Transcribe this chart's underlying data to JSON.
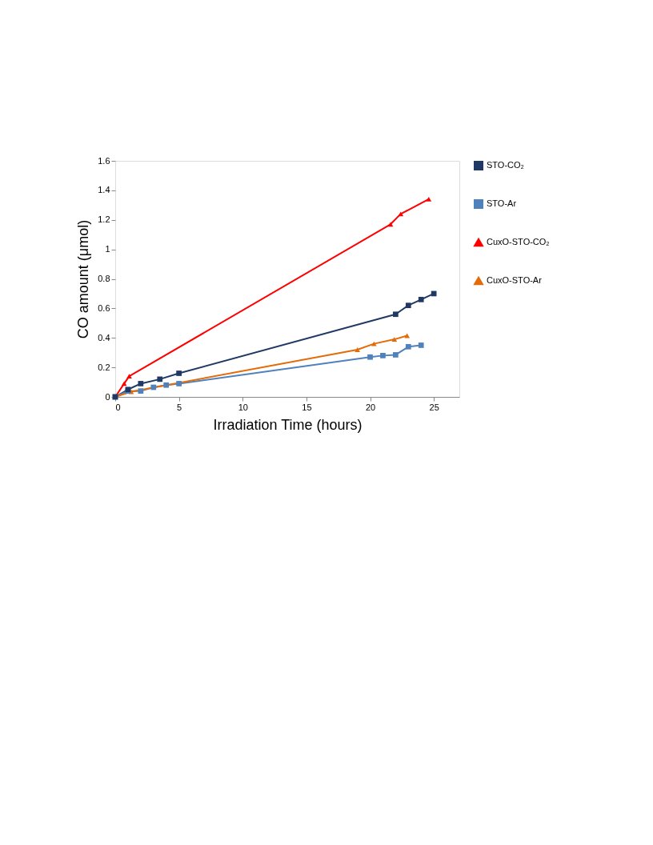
{
  "chart_data": {
    "type": "line",
    "xlabel": "Irradiation Time (hours)",
    "ylabel": "CO amount (μmol)",
    "xlim": [
      0,
      27
    ],
    "xticks": [
      0,
      5,
      10,
      15,
      20,
      25
    ],
    "ylim": [
      0,
      1.6
    ],
    "yticks": [
      0,
      0.2,
      0.4,
      0.6,
      0.8,
      1,
      1.2,
      1.4,
      1.6
    ],
    "grid": false,
    "legend": "right",
    "series": [
      {
        "name": "STO-CO₂",
        "color": "#1f3864",
        "marker": "square",
        "x": [
          0,
          1,
          2,
          3.5,
          5,
          22,
          23,
          24,
          25
        ],
        "values": [
          0,
          0.05,
          0.09,
          0.12,
          0.16,
          0.56,
          0.62,
          0.66,
          0.7
        ]
      },
      {
        "name": "STO-Ar",
        "color": "#4f81bd",
        "marker": "square",
        "x": [
          0,
          1,
          2,
          3,
          4,
          5,
          20,
          21,
          22,
          23,
          24
        ],
        "values": [
          0,
          0.04,
          0.04,
          0.065,
          0.08,
          0.09,
          0.27,
          0.28,
          0.285,
          0.34,
          0.35
        ]
      },
      {
        "name": "CuxO-STO-CO₂",
        "color": "#ff0000",
        "marker": "triangle",
        "x": [
          0,
          0.7,
          1.1,
          21.6,
          22.4,
          24.6
        ],
        "values": [
          0,
          0.09,
          0.14,
          1.17,
          1.24,
          1.34
        ]
      },
      {
        "name": "CuxO-STO-Ar",
        "color": "#e36c09",
        "marker": "triangle",
        "x": [
          0,
          1.25,
          19,
          20.3,
          21.9,
          22.9
        ],
        "values": [
          0,
          0.035,
          0.32,
          0.36,
          0.39,
          0.415
        ]
      }
    ]
  }
}
